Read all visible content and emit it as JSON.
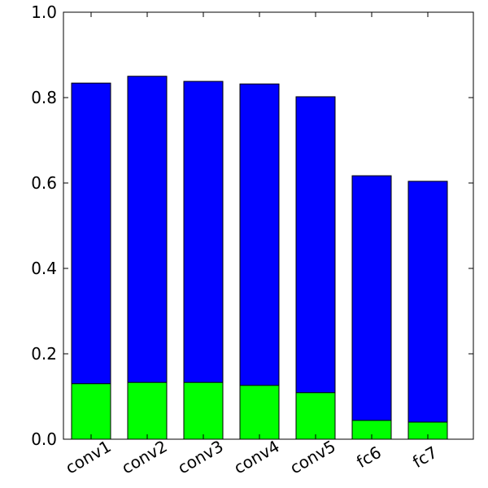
{
  "chart_data": {
    "type": "bar",
    "overlay": true,
    "categories": [
      "conv1",
      "conv2",
      "conv3",
      "conv4",
      "conv5",
      "fc6",
      "fc7"
    ],
    "series": [
      {
        "color": "#0000ff",
        "values": [
          0.834,
          0.85,
          0.838,
          0.832,
          0.802,
          0.617,
          0.604
        ]
      },
      {
        "color": "#00ff00",
        "values": [
          0.13,
          0.133,
          0.133,
          0.126,
          0.109,
          0.044,
          0.04
        ]
      }
    ],
    "ylim": [
      0,
      1
    ],
    "yticks": [
      {
        "value": 0,
        "label": "0.0"
      },
      0.2,
      0.4,
      0.6,
      0.8,
      {
        "value": 1,
        "label": "1.0"
      }
    ],
    "grid": false
  }
}
